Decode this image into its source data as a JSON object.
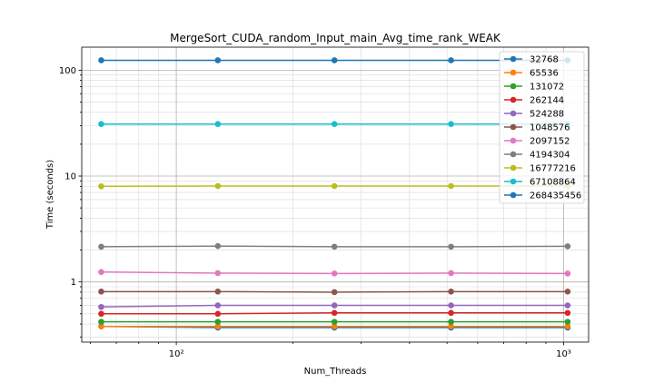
{
  "chart_data": {
    "type": "line",
    "title": "MergeSort_CUDA_random_Input_main_Avg_time_rank_WEAK",
    "xlabel": "Num_Threads",
    "ylabel": "Time (seconds)",
    "xscale": "log",
    "yscale": "log",
    "xlim": [
      57,
      1160
    ],
    "ylim": [
      0.27,
      165
    ],
    "x_ticks": [
      {
        "value": 100,
        "label": "10²"
      },
      {
        "value": 1000,
        "label": "10³"
      }
    ],
    "y_ticks": [
      {
        "value": 1,
        "label": "1"
      },
      {
        "value": 10,
        "label": "10"
      },
      {
        "value": 100,
        "label": "100"
      }
    ],
    "grid": true,
    "legend_position": "upper-right",
    "x": [
      64,
      128,
      256,
      512,
      1024
    ],
    "series": [
      {
        "name": "32768",
        "color": "#1f77b4",
        "values": [
          0.38,
          0.37,
          0.37,
          0.37,
          0.37
        ]
      },
      {
        "name": "65536",
        "color": "#ff7f0e",
        "values": [
          0.38,
          0.38,
          0.38,
          0.38,
          0.38
        ]
      },
      {
        "name": "131072",
        "color": "#2ca02c",
        "values": [
          0.42,
          0.42,
          0.42,
          0.42,
          0.42
        ]
      },
      {
        "name": "262144",
        "color": "#d62728",
        "values": [
          0.5,
          0.5,
          0.51,
          0.51,
          0.51
        ]
      },
      {
        "name": "524288",
        "color": "#9467bd",
        "values": [
          0.58,
          0.6,
          0.6,
          0.6,
          0.6
        ]
      },
      {
        "name": "1048576",
        "color": "#8c564b",
        "values": [
          0.81,
          0.81,
          0.8,
          0.81,
          0.81
        ]
      },
      {
        "name": "2097152",
        "color": "#e377c2",
        "values": [
          1.24,
          1.21,
          1.2,
          1.21,
          1.2
        ]
      },
      {
        "name": "4194304",
        "color": "#7f7f7f",
        "values": [
          2.15,
          2.18,
          2.15,
          2.15,
          2.17
        ]
      },
      {
        "name": "16777216",
        "color": "#bcbd22",
        "values": [
          8.0,
          8.05,
          8.05,
          8.05,
          8.05
        ]
      },
      {
        "name": "67108864",
        "color": "#17becf",
        "values": [
          31.0,
          31.0,
          31.0,
          31.0,
          31.0
        ]
      },
      {
        "name": "268435456",
        "color": "#1f77b4",
        "values": [
          124.0,
          124.0,
          124.0,
          124.0,
          124.0
        ]
      }
    ]
  }
}
